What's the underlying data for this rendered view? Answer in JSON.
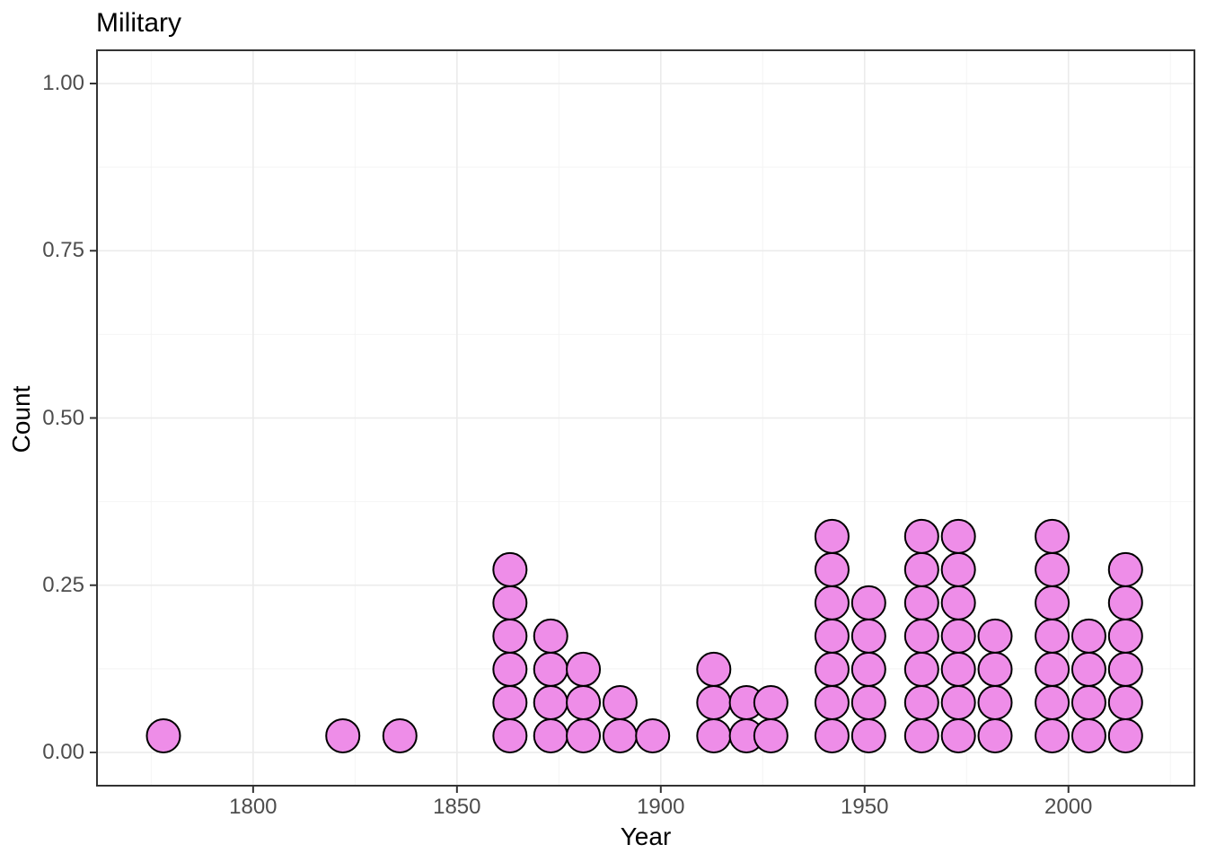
{
  "title": "Military",
  "axes": {
    "x_label": "Year",
    "y_label": "Count"
  },
  "colors": {
    "background": "#FFFFFF",
    "dot_fill": "#EE8DE8",
    "dot_stroke": "#000000",
    "grid_major": "#EBEBEB",
    "grid_minor": "#F4F4F4",
    "panel_border": "#333333",
    "tick_mark": "#333333",
    "tick_label": "#4D4D4D",
    "text": "#000000"
  },
  "chart_data": {
    "type": "scatter",
    "subtype": "stacked-dotplot",
    "title": "Military",
    "xlabel": "Year",
    "ylabel": "Count",
    "xlim": [
      1761.7,
      2030.9
    ],
    "ylim": [
      -0.0497,
      1.0497
    ],
    "x_major_ticks": [
      1800,
      1850,
      1900,
      1950,
      2000
    ],
    "x_tick_labels": [
      "1800",
      "1850",
      "1900",
      "1950",
      "2000"
    ],
    "x_minor_ticks": [
      1775,
      1825,
      1875,
      1925,
      1975,
      2025
    ],
    "y_major_ticks": [
      0,
      0.25,
      0.5,
      0.75,
      1.0
    ],
    "y_tick_labels": [
      "0.00",
      "0.25",
      "0.50",
      "0.75",
      "1.00"
    ],
    "y_minor_ticks": [
      0.125,
      0.375,
      0.625,
      0.875
    ],
    "grid": true,
    "legend": false,
    "dot_y_unit": 0.0497,
    "stacks": [
      {
        "year": 1778,
        "count": 1
      },
      {
        "year": 1822,
        "count": 1
      },
      {
        "year": 1836,
        "count": 1
      },
      {
        "year": 1863,
        "count": 6
      },
      {
        "year": 1873,
        "count": 4
      },
      {
        "year": 1881,
        "count": 3
      },
      {
        "year": 1890,
        "count": 2
      },
      {
        "year": 1898,
        "count": 1
      },
      {
        "year": 1913,
        "count": 3
      },
      {
        "year": 1921,
        "count": 2
      },
      {
        "year": 1927,
        "count": 2
      },
      {
        "year": 1942,
        "count": 7
      },
      {
        "year": 1951,
        "count": 5
      },
      {
        "year": 1964,
        "count": 7
      },
      {
        "year": 1973,
        "count": 7
      },
      {
        "year": 1982,
        "count": 4
      },
      {
        "year": 1996,
        "count": 7
      },
      {
        "year": 2005,
        "count": 4
      },
      {
        "year": 2014,
        "count": 6
      }
    ]
  }
}
